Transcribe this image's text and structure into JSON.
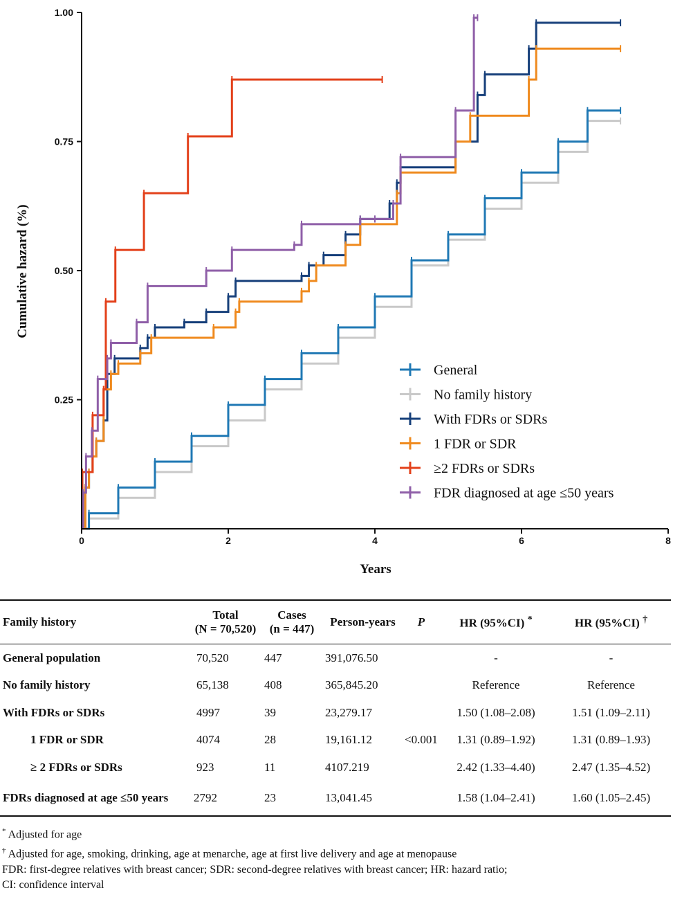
{
  "chart_data": {
    "type": "line",
    "step": true,
    "xlabel": "Years",
    "ylabel": "Cumulative hazard (%)",
    "xlim": [
      0,
      8
    ],
    "ylim": [
      0,
      1.0
    ],
    "x_ticks": [
      0,
      2,
      4,
      6,
      8
    ],
    "x_tick_labels": [
      "0",
      "2",
      "4",
      "6",
      "8"
    ],
    "y_ticks": [
      0.25,
      0.5,
      0.75,
      1.0
    ],
    "y_tick_labels": [
      "0.25",
      "0.50",
      "0.75",
      "1.00"
    ],
    "legend_position": "bottom-right",
    "series": [
      {
        "name": "No family history",
        "color": "#c9c9c9",
        "points": [
          [
            0,
            0
          ],
          [
            0.1,
            0.02
          ],
          [
            0.5,
            0.06
          ],
          [
            1.0,
            0.11
          ],
          [
            1.5,
            0.16
          ],
          [
            2.0,
            0.21
          ],
          [
            2.5,
            0.27
          ],
          [
            3.0,
            0.32
          ],
          [
            3.5,
            0.37
          ],
          [
            4.0,
            0.43
          ],
          [
            4.5,
            0.51
          ],
          [
            5.0,
            0.56
          ],
          [
            5.5,
            0.62
          ],
          [
            6.0,
            0.67
          ],
          [
            6.5,
            0.73
          ],
          [
            6.9,
            0.79
          ],
          [
            7.35,
            0.79
          ]
        ]
      },
      {
        "name": "General",
        "color": "#1f78b4",
        "points": [
          [
            0,
            0
          ],
          [
            0.1,
            0.03
          ],
          [
            0.5,
            0.08
          ],
          [
            1.0,
            0.13
          ],
          [
            1.5,
            0.18
          ],
          [
            2.0,
            0.24
          ],
          [
            2.5,
            0.29
          ],
          [
            3.0,
            0.34
          ],
          [
            3.5,
            0.39
          ],
          [
            4.0,
            0.45
          ],
          [
            4.5,
            0.52
          ],
          [
            5.0,
            0.57
          ],
          [
            5.5,
            0.64
          ],
          [
            6.0,
            0.69
          ],
          [
            6.5,
            0.75
          ],
          [
            6.9,
            0.81
          ],
          [
            7.35,
            0.81
          ]
        ]
      },
      {
        "name": "With FDRs or SDRs",
        "color": "#163f7a",
        "points": [
          [
            0,
            0
          ],
          [
            0.05,
            0.08
          ],
          [
            0.1,
            0.11
          ],
          [
            0.15,
            0.14
          ],
          [
            0.2,
            0.17
          ],
          [
            0.3,
            0.21
          ],
          [
            0.35,
            0.3
          ],
          [
            0.45,
            0.33
          ],
          [
            0.8,
            0.35
          ],
          [
            0.9,
            0.37
          ],
          [
            1.0,
            0.39
          ],
          [
            1.4,
            0.4
          ],
          [
            1.7,
            0.42
          ],
          [
            2.0,
            0.45
          ],
          [
            2.1,
            0.48
          ],
          [
            3.0,
            0.49
          ],
          [
            3.1,
            0.51
          ],
          [
            3.3,
            0.53
          ],
          [
            3.6,
            0.57
          ],
          [
            3.8,
            0.6
          ],
          [
            4.0,
            0.6
          ],
          [
            4.2,
            0.63
          ],
          [
            4.3,
            0.67
          ],
          [
            4.35,
            0.7
          ],
          [
            5.1,
            0.75
          ],
          [
            5.4,
            0.84
          ],
          [
            5.5,
            0.88
          ],
          [
            6.1,
            0.93
          ],
          [
            6.2,
            0.98
          ],
          [
            7.35,
            0.98
          ]
        ]
      },
      {
        "name": "1 FDR or SDR",
        "color": "#ef8a1e",
        "points": [
          [
            0,
            0
          ],
          [
            0.05,
            0.08
          ],
          [
            0.1,
            0.11
          ],
          [
            0.15,
            0.14
          ],
          [
            0.2,
            0.17
          ],
          [
            0.3,
            0.27
          ],
          [
            0.4,
            0.3
          ],
          [
            0.5,
            0.32
          ],
          [
            0.8,
            0.34
          ],
          [
            0.95,
            0.37
          ],
          [
            1.8,
            0.39
          ],
          [
            2.1,
            0.42
          ],
          [
            2.15,
            0.44
          ],
          [
            3.0,
            0.46
          ],
          [
            3.1,
            0.48
          ],
          [
            3.2,
            0.51
          ],
          [
            3.6,
            0.55
          ],
          [
            3.8,
            0.59
          ],
          [
            4.3,
            0.65
          ],
          [
            4.35,
            0.69
          ],
          [
            5.1,
            0.75
          ],
          [
            5.3,
            0.8
          ],
          [
            6.1,
            0.87
          ],
          [
            6.2,
            0.93
          ],
          [
            7.35,
            0.93
          ]
        ]
      },
      {
        "name": "≥2 FDRs or SDRs",
        "color": "#e3401a",
        "points": [
          [
            0,
            0
          ],
          [
            0.01,
            0.11
          ],
          [
            0.15,
            0.22
          ],
          [
            0.3,
            0.27
          ],
          [
            0.33,
            0.44
          ],
          [
            0.46,
            0.54
          ],
          [
            0.85,
            0.65
          ],
          [
            1.45,
            0.76
          ],
          [
            2.05,
            0.87
          ],
          [
            4.1,
            0.87
          ]
        ]
      },
      {
        "name": "FDR diagnosed at age ≤50 years",
        "color": "#8f5fa8",
        "points": [
          [
            0,
            0
          ],
          [
            0.02,
            0.07
          ],
          [
            0.06,
            0.14
          ],
          [
            0.14,
            0.19
          ],
          [
            0.22,
            0.29
          ],
          [
            0.35,
            0.33
          ],
          [
            0.4,
            0.36
          ],
          [
            0.75,
            0.4
          ],
          [
            0.9,
            0.47
          ],
          [
            1.7,
            0.5
          ],
          [
            2.05,
            0.54
          ],
          [
            2.9,
            0.55
          ],
          [
            3.0,
            0.59
          ],
          [
            3.8,
            0.6
          ],
          [
            4.0,
            0.6
          ],
          [
            4.25,
            0.63
          ],
          [
            4.35,
            0.72
          ],
          [
            5.1,
            0.81
          ],
          [
            5.35,
            0.99
          ],
          [
            5.4,
            0.99
          ]
        ]
      }
    ]
  },
  "table": {
    "headers": {
      "family_history": "Family history",
      "total_1": "Total",
      "total_2": "(N = 70,520)",
      "cases_1": "Cases",
      "cases_2": "(n = 447)",
      "person_years": "Person-years",
      "p": "P",
      "hr1": "HR (95%CI)",
      "hr1_mark": "*",
      "hr2": "HR (95%CI)",
      "hr2_mark": "†"
    },
    "p_value": "<0.001",
    "rows": [
      {
        "label": "General population",
        "total": "70,520",
        "cases": "447",
        "py": "391,076.50",
        "hr1": "-",
        "hr2": "-"
      },
      {
        "label": "No family history",
        "total": "65,138",
        "cases": "408",
        "py": "365,845.20",
        "hr1": "Reference",
        "hr2": "Reference"
      },
      {
        "label": "With FDRs or SDRs",
        "total": "4997",
        "cases": "39",
        "py": "23,279.17",
        "hr1": "1.50 (1.08–2.08)",
        "hr2": "1.51 (1.09–2.11)"
      },
      {
        "label": "1 FDR or SDR",
        "total": "4074",
        "cases": "28",
        "py": "19,161.12",
        "hr1": "1.31 (0.89–1.92)",
        "hr2": "1.31 (0.89–1.93)"
      },
      {
        "label": "≥ 2 FDRs or SDRs",
        "total": "923",
        "cases": "11",
        "py": "4107.219",
        "hr1": "2.42 (1.33–4.40)",
        "hr2": "2.47 (1.35–4.52)"
      },
      {
        "label": "FDRs diagnosed at age ≤50 years",
        "total": "2792",
        "cases": "23",
        "py": "13,041.45",
        "hr1": "1.58 (1.04–2.41)",
        "hr2": "1.60 (1.05–2.45)"
      }
    ]
  },
  "footnotes": {
    "n1_mark": "*",
    "n1": "Adjusted for age",
    "n2_mark": "†",
    "n2": "Adjusted for age, smoking, drinking, age at menarche, age at first live delivery and age at menopause",
    "n3": "FDR: first-degree relatives with breast cancer; SDR: second-degree relatives with breast cancer; HR: hazard ratio;",
    "n4": "CI: confidence interval"
  }
}
